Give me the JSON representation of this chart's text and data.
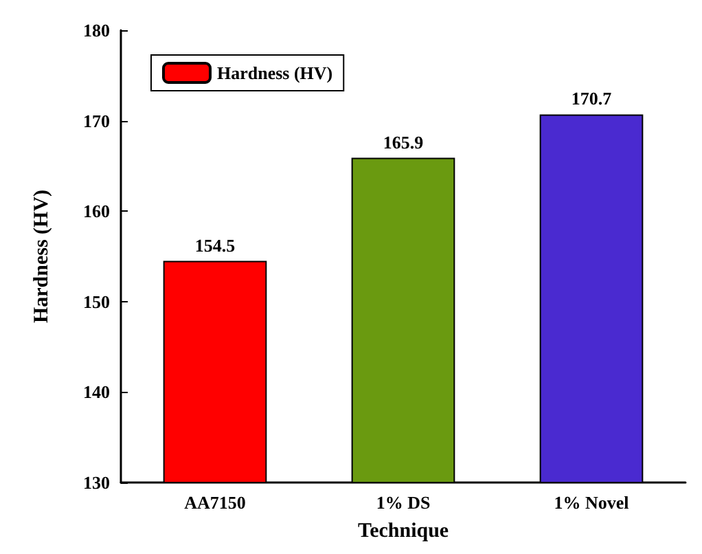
{
  "chart_data": {
    "type": "bar",
    "xlabel": "Technique",
    "ylabel": "Hardness (HV)",
    "categories": [
      "AA7150",
      "1% DS",
      "1% Novel"
    ],
    "series": [
      {
        "name": "Hardness (HV)",
        "color": "#ff0000",
        "colors": [
          "#ff0000",
          "#6a9a10",
          "#4a2ad0"
        ],
        "values": [
          154.5,
          165.9,
          170.7
        ]
      }
    ],
    "ylim": [
      130,
      180
    ],
    "yticks": [
      130,
      140,
      150,
      160,
      170,
      180
    ],
    "data_labels": true,
    "legend": "top left",
    "grid": false
  }
}
